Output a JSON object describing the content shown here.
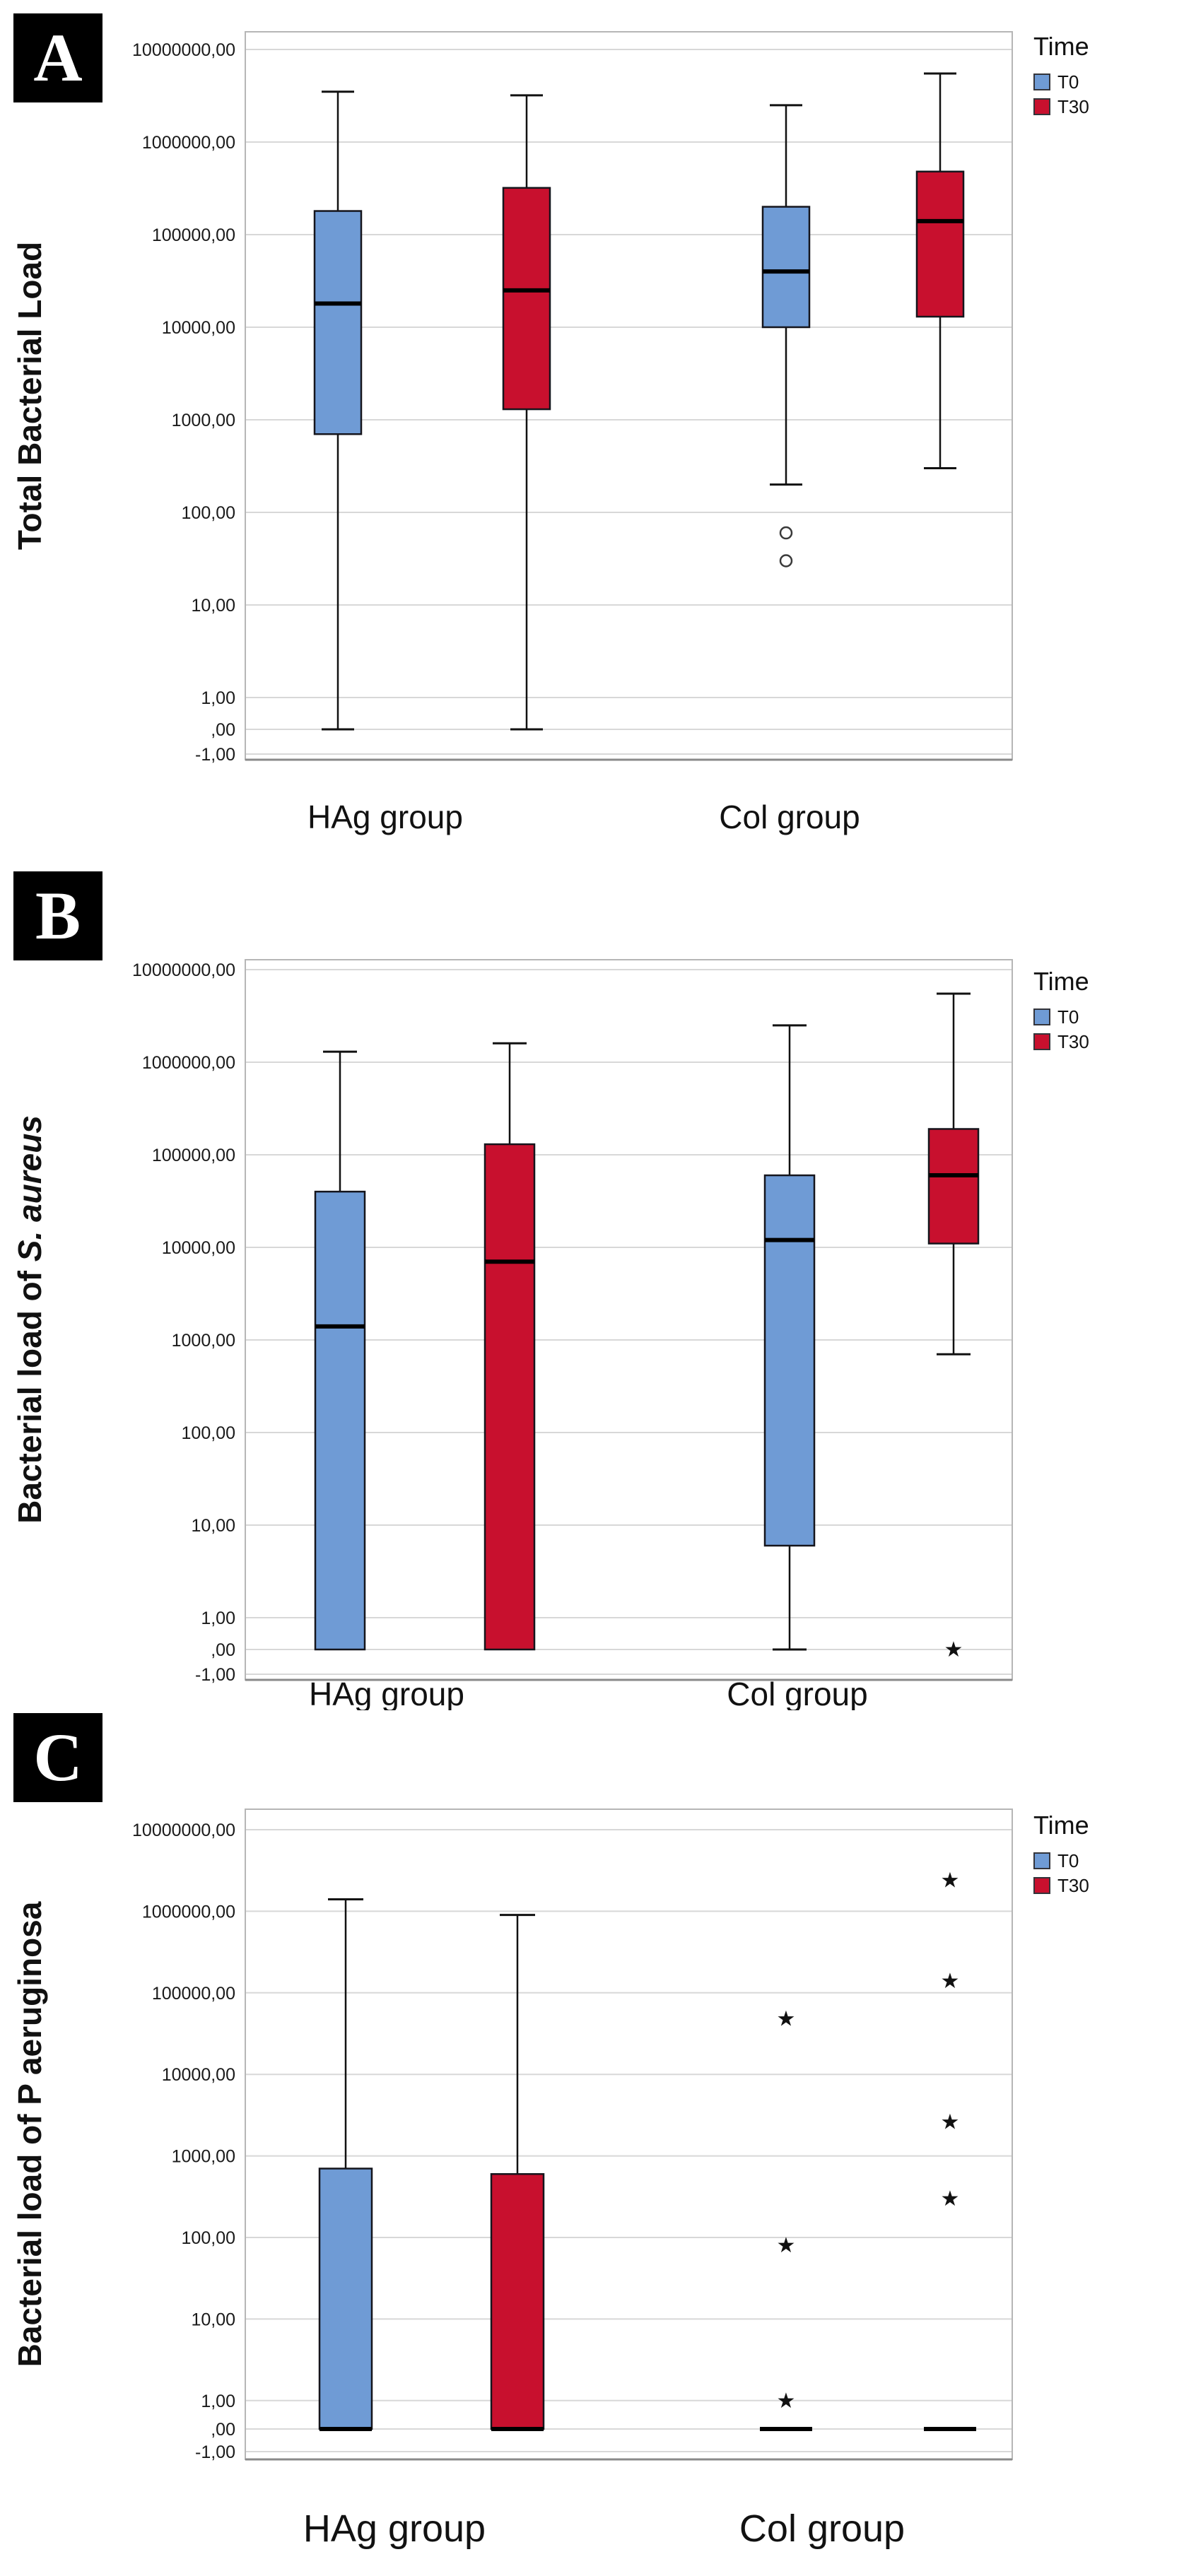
{
  "figure": {
    "background": "#ffffff",
    "panel_letters": [
      "A",
      "B",
      "C"
    ]
  },
  "chart_data": [
    {
      "type": "boxplot",
      "panel_letter": "A",
      "title": "",
      "ylabel": "Total Bacterial Load",
      "ylabel_parts": [
        {
          "text": "Total Bacterial Load",
          "italic": false
        }
      ],
      "xlabel": "",
      "categories": [
        "HAg group",
        "Col group"
      ],
      "legend": {
        "title": "Time",
        "series": [
          "T0",
          "T30"
        ],
        "position": "top-right"
      },
      "y_scale": "log",
      "grid": true,
      "y_tick_labels": [
        "10000000,00",
        "1000000,00",
        "100000,00",
        "10000,00",
        "1000,00",
        "100,00",
        "10,00",
        "1,00",
        ",00",
        "-1,00"
      ],
      "series": [
        {
          "name": "T0",
          "color": "#6F9BD5",
          "boxes": [
            {
              "category": "HAg group",
              "whisker_low": 0,
              "q1": 700,
              "median": 18000,
              "q3": 180000,
              "whisker_high": 3500000,
              "outliers": [],
              "extremes": []
            },
            {
              "category": "Col group",
              "whisker_low": 200,
              "q1": 10000,
              "median": 40000,
              "q3": 200000,
              "whisker_high": 2500000,
              "outliers": [
                60,
                30
              ],
              "extremes": []
            }
          ]
        },
        {
          "name": "T30",
          "color": "#C8102E",
          "boxes": [
            {
              "category": "HAg group",
              "whisker_low": 0,
              "q1": 1300,
              "median": 25000,
              "q3": 320000,
              "whisker_high": 3200000,
              "outliers": [],
              "extremes": []
            },
            {
              "category": "Col group",
              "whisker_low": 300,
              "q1": 13000,
              "median": 140000,
              "q3": 480000,
              "whisker_high": 5500000,
              "outliers": [],
              "extremes": []
            }
          ]
        }
      ]
    },
    {
      "type": "boxplot",
      "panel_letter": "B",
      "title": "",
      "ylabel": "Bacterial load of S. aureus",
      "ylabel_parts": [
        {
          "text": "Bacterial load of ",
          "italic": false
        },
        {
          "text": "S. aureus",
          "italic": true
        }
      ],
      "xlabel": "",
      "categories": [
        "HAg group",
        "Col group"
      ],
      "legend": {
        "title": "Time",
        "series": [
          "T0",
          "T30"
        ],
        "position": "top-right"
      },
      "y_scale": "log",
      "grid": true,
      "y_tick_labels": [
        "10000000,00",
        "1000000,00",
        "100000,00",
        "10000,00",
        "1000,00",
        "100,00",
        "10,00",
        "1,00",
        ",00",
        "-1,00"
      ],
      "series": [
        {
          "name": "T0",
          "color": "#6F9BD5",
          "boxes": [
            {
              "category": "HAg group",
              "whisker_low": 0,
              "q1": 0,
              "median": 1400,
              "q3": 40000,
              "whisker_high": 1300000,
              "outliers": [],
              "extremes": []
            },
            {
              "category": "Col group",
              "whisker_low": 0,
              "q1": 6,
              "median": 12000,
              "q3": 60000,
              "whisker_high": 2500000,
              "outliers": [],
              "extremes": []
            }
          ]
        },
        {
          "name": "T30",
          "color": "#C8102E",
          "boxes": [
            {
              "category": "HAg group",
              "whisker_low": 0,
              "q1": 0,
              "median": 7000,
              "q3": 130000,
              "whisker_high": 1600000,
              "outliers": [],
              "extremes": []
            },
            {
              "category": "Col group",
              "whisker_low": 700,
              "q1": 11000,
              "median": 60000,
              "q3": 190000,
              "whisker_high": 5500000,
              "outliers": [],
              "extremes": [
                0
              ]
            }
          ]
        }
      ]
    },
    {
      "type": "boxplot",
      "panel_letter": "C",
      "title": "",
      "ylabel": "Bacterial load of P aeruginosa",
      "ylabel_parts": [
        {
          "text": "Bacterial load of P aeruginosa",
          "italic": false
        }
      ],
      "xlabel": "",
      "categories": [
        "HAg group",
        "Col group"
      ],
      "legend": {
        "title": "Time",
        "series": [
          "T0",
          "T30"
        ],
        "position": "top-right"
      },
      "y_scale": "log",
      "grid": true,
      "y_tick_labels": [
        "10000000,00",
        "1000000,00",
        "100000,00",
        "10000,00",
        "1000,00",
        "100,00",
        "10,00",
        "1,00",
        ",00",
        "-1,00"
      ],
      "series": [
        {
          "name": "T0",
          "color": "#6F9BD5",
          "boxes": [
            {
              "category": "HAg group",
              "whisker_low": 0,
              "q1": 0,
              "median": 0,
              "q3": 700,
              "whisker_high": 1400000,
              "outliers": [],
              "extremes": []
            },
            {
              "category": "Col group",
              "whisker_low": 0,
              "q1": 0,
              "median": 0,
              "q3": 0,
              "whisker_high": 0,
              "outliers": [],
              "extremes": [
                48000,
                80,
                1
              ]
            }
          ]
        },
        {
          "name": "T30",
          "color": "#C8102E",
          "boxes": [
            {
              "category": "HAg group",
              "whisker_low": 0,
              "q1": 0,
              "median": 0,
              "q3": 600,
              "whisker_high": 900000,
              "outliers": [],
              "extremes": []
            },
            {
              "category": "Col group",
              "whisker_low": 0,
              "q1": 0,
              "median": 0,
              "q3": 0,
              "whisker_high": 0,
              "outliers": [],
              "extremes": [
                2400000,
                140000,
                2600,
                300
              ]
            }
          ]
        }
      ]
    }
  ]
}
